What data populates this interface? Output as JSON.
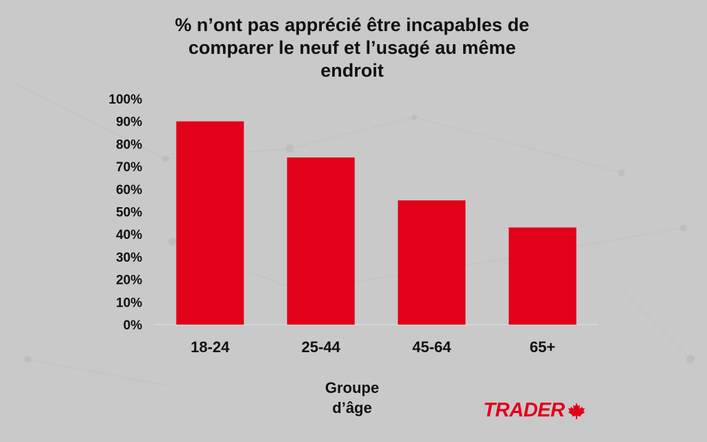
{
  "chart_data": {
    "type": "bar",
    "title_lines": [
      "% n’ont pas apprécié être incapables de",
      "comparer le neuf et l’usagé au même",
      "endroit"
    ],
    "categories": [
      "18-24",
      "25-44",
      "45-64",
      "65+"
    ],
    "values": [
      90,
      74,
      55,
      43
    ],
    "xlabel_lines": [
      "Groupe",
      "d’âge"
    ],
    "ylabel": "",
    "ylim": [
      0,
      100
    ],
    "yticks": [
      "0%",
      "10%",
      "20%",
      "30%",
      "40%",
      "50%",
      "60%",
      "70%",
      "80%",
      "90%",
      "100%"
    ],
    "grid": false,
    "legend": "none",
    "bar_color": "#e2001a"
  },
  "brand": {
    "logo_text": "TRADER",
    "logo_icon": "maple-leaf-icon",
    "color": "#e2001a"
  }
}
